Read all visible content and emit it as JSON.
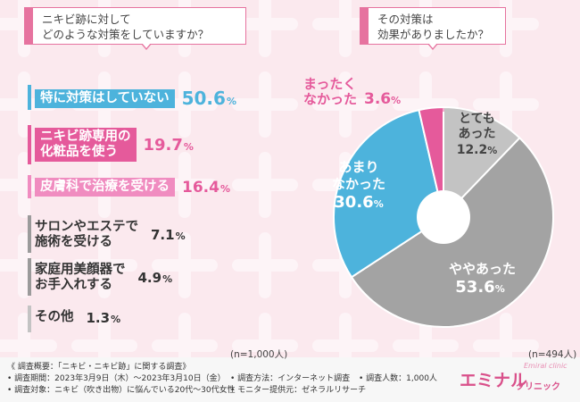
{
  "left_question": [
    "ニキビ跡に対して",
    "どのような対策をしていますか？"
  ],
  "right_question": [
    "その対策は",
    "効果がありましたか？"
  ],
  "left_n": "(n=1,000人)",
  "right_n": "(n=494人)",
  "colors": {
    "accent": "#e6739f",
    "blue": "#4db3dc",
    "pink": "#e55a9b",
    "light_pink": "#f08cc0",
    "gray": "#a3a3a3",
    "light_gray": "#c3c3c3",
    "dark_gray": "#9b9b9b"
  },
  "chart_data": [
    {
      "type": "bar",
      "title": "ニキビ跡に対してどのような対策をしていますか？",
      "orientation": "horizontal",
      "categories": [
        "特に対策はしていない",
        "ニキビ跡専用の化粧品を使う",
        "皮膚科で治療を受ける",
        "サロンやエステで施術を受ける",
        "家庭用美顔器でお手入れする",
        "その他"
      ],
      "label_lines": [
        [
          "特に対策はしていない"
        ],
        [
          "ニキビ跡専用の",
          "化粧品を使う"
        ],
        [
          "皮膚科で治療を受ける"
        ],
        [
          "サロンやエステで",
          "施術を受ける"
        ],
        [
          "家庭用美顔器で",
          "お手入れする"
        ],
        [
          "その他"
        ]
      ],
      "values": [
        50.6,
        19.7,
        16.4,
        7.1,
        4.9,
        1.3
      ],
      "value_labels": [
        "50.6",
        "19.7",
        "16.4",
        "7.1",
        "4.9",
        "1.3"
      ],
      "unit": "%",
      "n": 1000
    },
    {
      "type": "pie",
      "title": "その対策は効果がありましたか？",
      "categories": [
        "とてもあった",
        "ややあった",
        "あまりなかった",
        "まったくなかった"
      ],
      "label_lines": [
        [
          "とても",
          "あった"
        ],
        [
          "ややあった"
        ],
        [
          "あまり",
          "なかった"
        ],
        [
          "まったく",
          "なかった"
        ]
      ],
      "values": [
        12.2,
        53.6,
        30.6,
        3.6
      ],
      "value_labels": [
        "12.2",
        "53.6",
        "30.6",
        "3.6"
      ],
      "unit": "%",
      "n": 494
    }
  ],
  "footer": {
    "title": "《 調査概要：「ニキビ・ニキビ跡」に関する調査》",
    "period": "• 調査期間：2023年3月9日（木）〜2023年3月10日（金）",
    "method": "• 調査方法：インターネット調査",
    "count": "• 調査人数：1,000人",
    "target": "• 調査対象：ニキビ（吹き出物）に悩んでいる20代〜30代女性",
    "provider": "• モニター提供元：ゼネラルリサーチ"
  },
  "logo": {
    "main": "エミナル",
    "sub": "クリニック",
    "script": "Emiral clinic"
  }
}
